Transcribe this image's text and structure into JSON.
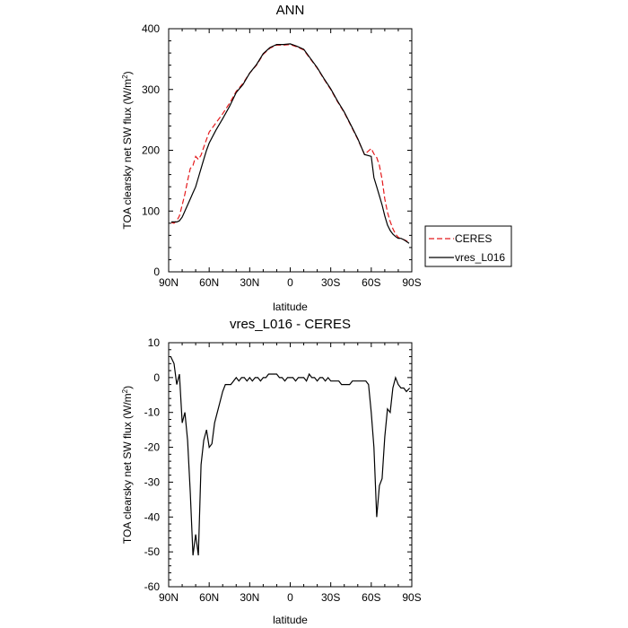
{
  "chart_data": [
    {
      "type": "line",
      "title": "ANN",
      "xlabel": "latitude",
      "ylabel": "TOA clearsky net SW flux (W/m",
      "ylabel_sup": "2",
      "ylabel_close": ")",
      "xlim": [
        90,
        -90
      ],
      "ylim": [
        0,
        400
      ],
      "x_ticks": [
        {
          "value": 90,
          "label": "90N"
        },
        {
          "value": 60,
          "label": "60N"
        },
        {
          "value": 30,
          "label": "30N"
        },
        {
          "value": 0,
          "label": "0"
        },
        {
          "value": -30,
          "label": "30S"
        },
        {
          "value": -60,
          "label": "60S"
        },
        {
          "value": -90,
          "label": "90S"
        }
      ],
      "y_ticks": [
        0,
        100,
        200,
        300,
        400
      ],
      "legend_position": "right",
      "series": [
        {
          "name": "CERES",
          "color": "#e41a1c",
          "dash": "6,3",
          "x": [
            88,
            86,
            84,
            82,
            80,
            78,
            76,
            74,
            72,
            70,
            68,
            66,
            64,
            62,
            60,
            55,
            50,
            45,
            40,
            35,
            30,
            25,
            20,
            15,
            10,
            5,
            0,
            -5,
            -10,
            -15,
            -20,
            -25,
            -30,
            -35,
            -40,
            -45,
            -50,
            -55,
            -60,
            -62,
            -64,
            -66,
            -68,
            -70,
            -72,
            -74,
            -76,
            -78,
            -80,
            -82,
            -84,
            -86,
            -88
          ],
          "values": [
            81,
            80,
            84,
            92,
            110,
            128,
            150,
            170,
            175,
            190,
            185,
            192,
            205,
            218,
            230,
            245,
            260,
            277,
            297,
            310,
            327,
            340,
            358,
            368,
            373,
            373,
            374,
            370,
            365,
            350,
            335,
            317,
            300,
            280,
            262,
            240,
            218,
            193,
            203,
            194,
            188,
            175,
            152,
            120,
            98,
            83,
            71,
            62,
            57,
            54,
            53,
            51,
            48
          ]
        },
        {
          "name": "vres_L016",
          "color": "#000000",
          "dash": "",
          "x": [
            88,
            86,
            84,
            82,
            80,
            78,
            76,
            74,
            72,
            70,
            68,
            66,
            64,
            62,
            60,
            55,
            50,
            45,
            40,
            35,
            30,
            25,
            20,
            15,
            10,
            5,
            0,
            -5,
            -10,
            -15,
            -20,
            -25,
            -30,
            -35,
            -40,
            -45,
            -50,
            -55,
            -60,
            -62,
            -64,
            -66,
            -68,
            -70,
            -72,
            -74,
            -76,
            -78,
            -80,
            -82,
            -84,
            -86,
            -88
          ],
          "values": [
            82,
            82,
            82,
            84,
            90,
            100,
            110,
            120,
            130,
            140,
            155,
            170,
            185,
            200,
            212,
            233,
            252,
            272,
            295,
            308,
            327,
            341,
            359,
            369,
            374,
            374,
            375,
            371,
            366,
            351,
            336,
            318,
            301,
            281,
            263,
            241,
            219,
            193,
            190,
            155,
            140,
            125,
            110,
            92,
            77,
            68,
            62,
            58,
            55,
            55,
            53,
            50,
            47
          ]
        }
      ]
    },
    {
      "type": "line",
      "title": "vres_L016 - CERES",
      "xlabel": "latitude",
      "ylabel": "TOA clearsky net SW flux (W/m",
      "ylabel_sup": "2",
      "ylabel_close": ")",
      "xlim": [
        90,
        -90
      ],
      "ylim": [
        -60,
        10
      ],
      "x_ticks": [
        {
          "value": 90,
          "label": "90N"
        },
        {
          "value": 60,
          "label": "60N"
        },
        {
          "value": 30,
          "label": "30N"
        },
        {
          "value": 0,
          "label": "0"
        },
        {
          "value": -30,
          "label": "30S"
        },
        {
          "value": -60,
          "label": "60S"
        },
        {
          "value": -90,
          "label": "90S"
        }
      ],
      "y_ticks": [
        -60,
        -50,
        -40,
        -30,
        -20,
        -10,
        0,
        10
      ],
      "series": [
        {
          "name": "vres_L016 - CERES",
          "color": "#000000",
          "dash": "",
          "x": [
            88.5,
            86,
            84,
            82,
            80,
            78,
            76,
            74,
            72,
            70,
            68,
            66,
            64,
            62,
            60,
            58,
            56,
            54,
            52,
            50,
            48,
            46,
            44,
            42,
            40,
            38,
            36,
            34,
            32,
            30,
            28,
            26,
            24,
            22,
            20,
            18,
            16,
            14,
            12,
            10,
            8,
            6,
            4,
            2,
            0,
            -2,
            -4,
            -6,
            -8,
            -10,
            -12,
            -14,
            -16,
            -18,
            -20,
            -22,
            -24,
            -26,
            -28,
            -30,
            -32,
            -34,
            -36,
            -38,
            -40,
            -42,
            -44,
            -46,
            -48,
            -50,
            -52,
            -54,
            -56,
            -58,
            -60,
            -62,
            -64,
            -66,
            -68,
            -70,
            -72,
            -74,
            -76,
            -78,
            -80,
            -82,
            -84,
            -86,
            -88.5
          ],
          "values": [
            6,
            4,
            -2,
            1,
            -13,
            -10,
            -18,
            -33,
            -51,
            -45,
            -51,
            -25,
            -18,
            -15,
            -20,
            -19,
            -13,
            -10,
            -7,
            -4,
            -2,
            -2,
            -2,
            -1,
            0,
            -1,
            0,
            0,
            -1,
            0,
            -1,
            0,
            0,
            -1,
            0,
            0,
            1,
            1,
            1,
            1,
            0,
            0,
            -1,
            0,
            0,
            0,
            -1,
            0,
            0,
            0,
            -1,
            1,
            0,
            0,
            -1,
            0,
            0,
            -1,
            0,
            -1,
            -1,
            -1,
            -1,
            -2,
            -2,
            -2,
            -2,
            -1,
            -1,
            -1,
            -1,
            -1,
            -1,
            -2,
            -10,
            -20,
            -40,
            -31,
            -29,
            -17,
            -9,
            -10,
            -3,
            0,
            -2,
            -3,
            -3,
            -4,
            -3
          ]
        }
      ]
    }
  ]
}
